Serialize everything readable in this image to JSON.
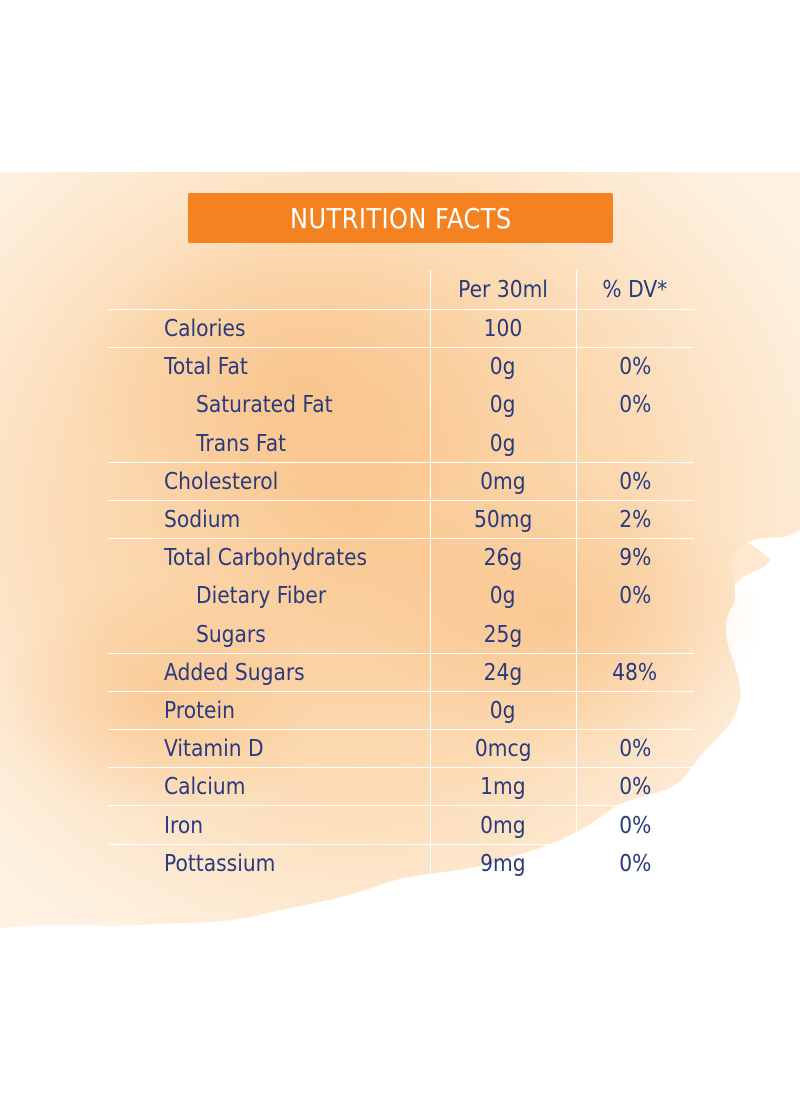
{
  "colors": {
    "accent": "#f58220",
    "text": "#2b3a7e",
    "wash": "#fbd7a8"
  },
  "title": "NUTRITION FACTS",
  "columns": {
    "per": "Per 30ml",
    "dv": "% DV*"
  },
  "rows": [
    {
      "name": "Calories",
      "per": "100",
      "dv": ""
    },
    {
      "name": "Total Fat",
      "per": "0g",
      "dv": "0%"
    },
    {
      "name": "Saturated Fat",
      "per": "0g",
      "dv": "0%"
    },
    {
      "name": "Trans Fat",
      "per": "0g",
      "dv": ""
    },
    {
      "name": "Cholesterol",
      "per": "0mg",
      "dv": "0%"
    },
    {
      "name": "Sodium",
      "per": "50mg",
      "dv": "2%"
    },
    {
      "name": "Total Carbohydrates",
      "per": "26g",
      "dv": "9%"
    },
    {
      "name": "Dietary Fiber",
      "per": "0g",
      "dv": "0%"
    },
    {
      "name": "Sugars",
      "per": "25g",
      "dv": ""
    },
    {
      "name": "Added Sugars",
      "per": "24g",
      "dv": "48%"
    },
    {
      "name": "Protein",
      "per": "0g",
      "dv": ""
    },
    {
      "name": "Vitamin D",
      "per": "0mcg",
      "dv": "0%"
    },
    {
      "name": "Calcium",
      "per": "1mg",
      "dv": "0%"
    },
    {
      "name": "Iron",
      "per": "0mg",
      "dv": "0%"
    },
    {
      "name": "Pottassium",
      "per": "9mg",
      "dv": "0%"
    }
  ]
}
